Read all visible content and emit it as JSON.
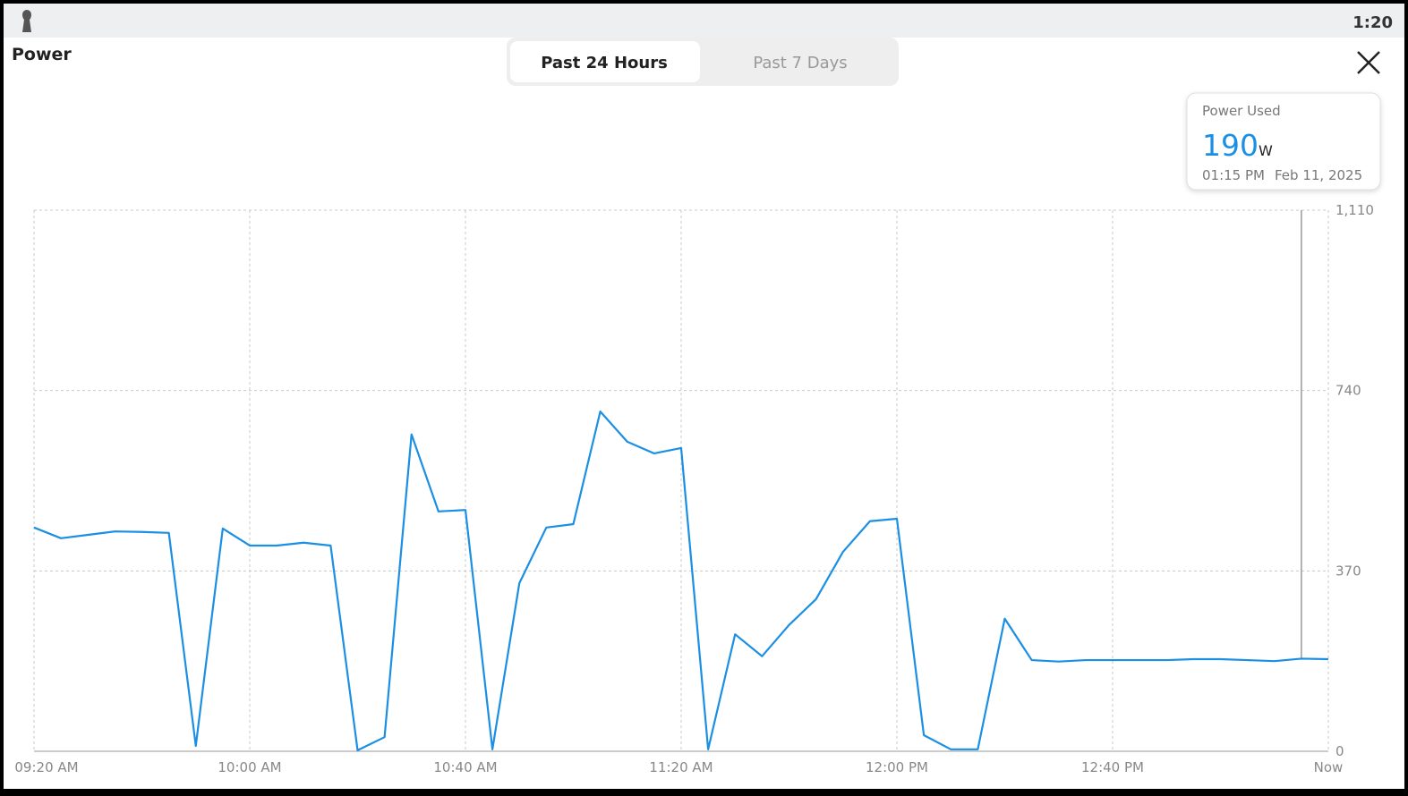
{
  "status_bar": {
    "time": "1:20"
  },
  "header": {
    "title": "Power"
  },
  "tabs": [
    "Past 24 Hours",
    "Past 7 Days"
  ],
  "tooltip": {
    "label": "Power Used",
    "value": 190,
    "unit": "W",
    "time": "01:15 PM",
    "date": "Feb 11, 2025"
  },
  "chart_data": {
    "type": "line",
    "color": "#1a8fe3",
    "grid": true,
    "categories": [
      "09:20 AM",
      null,
      null,
      null,
      null,
      null,
      null,
      null,
      "10:00 AM",
      null,
      null,
      null,
      null,
      null,
      null,
      null,
      "10:40 AM",
      null,
      null,
      null,
      null,
      null,
      null,
      null,
      "11:20 AM",
      null,
      null,
      null,
      null,
      null,
      null,
      null,
      "12:00 PM",
      null,
      null,
      null,
      null,
      null,
      null,
      null,
      "12:40 PM",
      null,
      null,
      null,
      null,
      null,
      null,
      null,
      "Now"
    ],
    "values": [
      459,
      437,
      444,
      451,
      450,
      448,
      11,
      457,
      422,
      422,
      428,
      422,
      2,
      29,
      650,
      492,
      495,
      4,
      345,
      459,
      466,
      697,
      635,
      611,
      622,
      4,
      240,
      195,
      259,
      312,
      409,
      472,
      477,
      33,
      4,
      4,
      272,
      187,
      184,
      187,
      187,
      187,
      187,
      189,
      189,
      187,
      185,
      190,
      189
    ],
    "ylim": [
      0,
      1110
    ],
    "yticks": [
      0,
      370,
      740,
      {
        "value": 1110,
        "label": "1,110"
      }
    ]
  }
}
